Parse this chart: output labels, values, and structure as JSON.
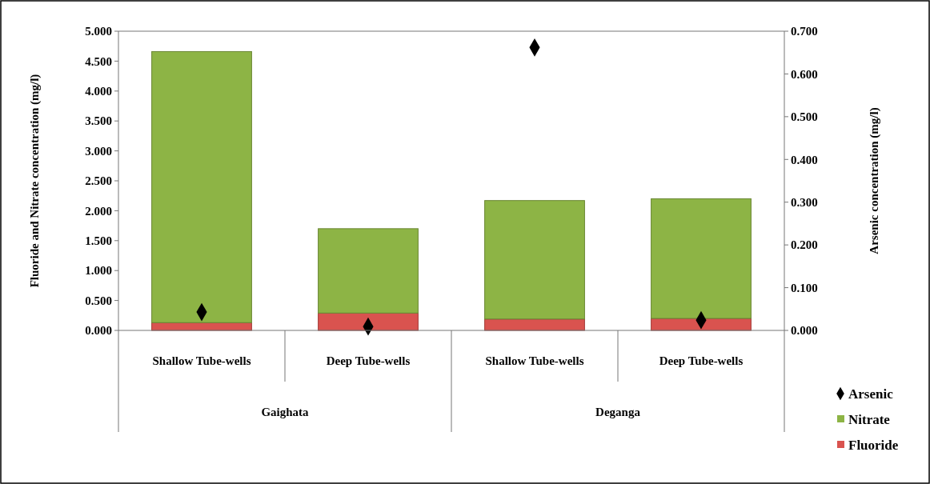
{
  "chart_data": {
    "type": "bar",
    "stacked": true,
    "categories": [
      "Shallow Tube-wells",
      "Deep Tube-wells",
      "Shallow Tube-wells",
      "Deep Tube-wells"
    ],
    "series": [
      {
        "name": "Fluoride",
        "color": "#d9534f",
        "values": [
          0.13,
          0.29,
          0.19,
          0.2
        ]
      },
      {
        "name": "Nitrate",
        "color": "#8db445",
        "values": [
          4.53,
          1.41,
          1.98,
          2.0
        ]
      },
      {
        "name": "Arsenic",
        "type": "scatter",
        "axis": "y2",
        "color": "#000000",
        "marker": "diamond",
        "values": [
          0.043,
          0.009,
          0.662,
          0.024
        ]
      }
    ],
    "ylabel": "Fluoride and Nitrate concentration (mg/l)",
    "y2label": "Arsenic concentration (mg/l)",
    "ylim": [
      0,
      5
    ],
    "yticks": [
      {
        "value": 0,
        "label": "0.000"
      },
      {
        "value": 0.5,
        "label": "0.500"
      },
      {
        "value": 1,
        "label": "1.000"
      },
      {
        "value": 1.5,
        "label": "1.500"
      },
      {
        "value": 2,
        "label": "2.000"
      },
      {
        "value": 2.5,
        "label": "2.500"
      },
      {
        "value": 3,
        "label": "3.000"
      },
      {
        "value": 3.5,
        "label": "3.500"
      },
      {
        "value": 4,
        "label": "4.000"
      },
      {
        "value": 4.5,
        "label": "4.500"
      },
      {
        "value": 5,
        "label": "5.000"
      }
    ],
    "y2lim": [
      0,
      0.7
    ],
    "y2ticks": [
      {
        "value": 0,
        "label": "0.000"
      },
      {
        "value": 0.1,
        "label": "0.100"
      },
      {
        "value": 0.2,
        "label": "0.200"
      },
      {
        "value": 0.3,
        "label": "0.300"
      },
      {
        "value": 0.4,
        "label": "0.400"
      },
      {
        "value": 0.5,
        "label": "0.500"
      },
      {
        "value": 0.6,
        "label": "0.600"
      },
      {
        "value": 0.7,
        "label": "0.700"
      }
    ],
    "annotations": [
      "Gaighata",
      "Deganga"
    ],
    "legend": "bottom right",
    "grid": false
  }
}
